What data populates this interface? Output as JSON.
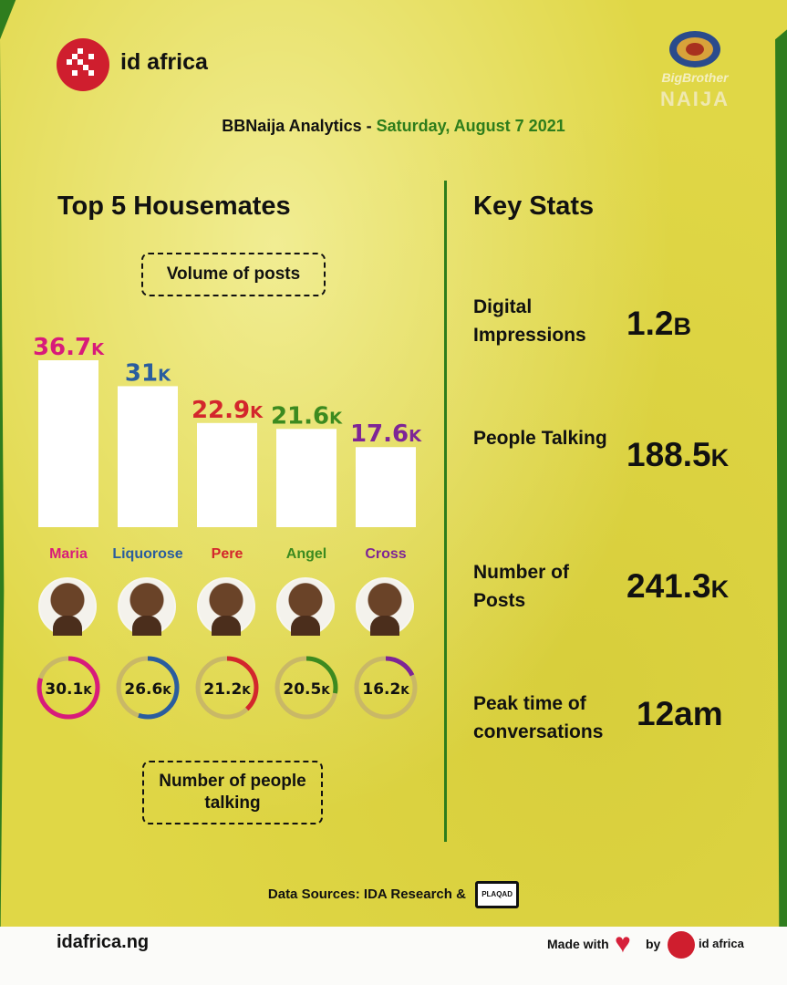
{
  "brand": {
    "name": "id africa"
  },
  "show_logo": {
    "line1": "BigBrother",
    "line2": "NAIJA"
  },
  "header": {
    "title": "BBNaija Analytics",
    "separator": " - ",
    "date": "Saturday, August 7 2021"
  },
  "left": {
    "heading": "Top 5 Housemates",
    "volume_label": "Volume of posts",
    "talking_label": "Number of people talking"
  },
  "chart_data": {
    "type": "bar",
    "title": "Volume of posts",
    "categories": [
      "Maria",
      "Liquorose",
      "Pere",
      "Angel",
      "Cross"
    ],
    "values": [
      36.7,
      31,
      22.9,
      21.6,
      17.6
    ],
    "value_labels": [
      "36.7",
      "31",
      "22.9",
      "21.6",
      "17.6"
    ],
    "unit": "K",
    "colors": [
      "#d81b7a",
      "#2a5d9e",
      "#d3262c",
      "#3c8a1f",
      "#7e2596"
    ],
    "people_talking": {
      "title": "Number of people talking",
      "values": [
        30.1,
        26.6,
        21.2,
        20.5,
        16.2
      ],
      "value_labels": [
        "30.1",
        "26.6",
        "21.2",
        "20.5",
        "16.2"
      ],
      "unit": "K",
      "ring_fill_fraction": [
        0.8,
        0.55,
        0.38,
        0.28,
        0.18
      ]
    }
  },
  "key_stats": {
    "heading": "Key Stats",
    "items": [
      {
        "label": "Digital Impressions",
        "value": "1.2",
        "unit": "B"
      },
      {
        "label": "People Talking",
        "value": "188.5",
        "unit": "K"
      },
      {
        "label": "Number of Posts",
        "value": "241.3",
        "unit": "K"
      },
      {
        "label": "Peak time of conversations",
        "value": "12am",
        "unit": ""
      }
    ]
  },
  "footer": {
    "sources_label": "Data Sources: IDA Research &",
    "partner_logo": "PLAQAD",
    "url": "idafrica.ng",
    "made_with": "Made with",
    "by": "by",
    "brand": "id africa"
  },
  "icons": {
    "heart": "heart-icon",
    "avatar": "avatar-image"
  }
}
